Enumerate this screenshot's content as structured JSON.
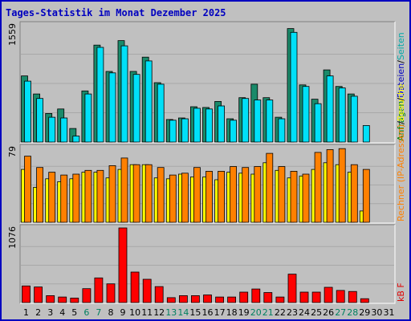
{
  "chart_data": {
    "title": "Tages-Statistik im Monat Dezember 2025",
    "type": "bar",
    "days": [
      "1",
      "2",
      "3",
      "4",
      "5",
      "6",
      "7",
      "8",
      "9",
      "10",
      "11",
      "12",
      "13",
      "14",
      "15",
      "16",
      "17",
      "18",
      "19",
      "20",
      "21",
      "22",
      "23",
      "24",
      "25",
      "26",
      "27",
      "28",
      "29",
      "30",
      "31"
    ],
    "weekend_days": [
      "6",
      "7",
      "13",
      "14",
      "20",
      "21",
      "27",
      "28"
    ],
    "panels": [
      {
        "id": "top",
        "max_label": "1559",
        "ylim": [
          0,
          1559
        ],
        "legend": [
          {
            "text": "Anfragen",
            "color": "#008000"
          },
          {
            "text": "/",
            "color": "#000000"
          },
          {
            "text": "Dateien",
            "color": "#0000c0"
          },
          {
            "text": "/",
            "color": "#000000"
          },
          {
            "text": "Seiten",
            "color": "#00aaaa"
          }
        ],
        "series": [
          {
            "name": "Anfragen",
            "color": "#1a8a6a",
            "values": [
              880,
              640,
              380,
              440,
              180,
              680,
              1290,
              940,
              1350,
              940,
              1130,
              790,
              300,
              320,
              470,
              460,
              540,
              310,
              590,
              770,
              590,
              330,
              1510,
              760,
              570,
              960,
              740,
              640,
              0,
              0,
              0
            ]
          },
          {
            "name": "Dateien",
            "color": "#00e0f8",
            "values": [
              810,
              580,
              330,
              320,
              80,
              640,
              1260,
              920,
              1280,
              900,
              1080,
              770,
              290,
              310,
              450,
              440,
              480,
              290,
              580,
              560,
              560,
              310,
              1460,
              740,
              510,
              880,
              720,
              610,
              220,
              0,
              0
            ]
          }
        ]
      },
      {
        "id": "middle",
        "max_label": "79",
        "ylim": [
          0,
          79
        ],
        "legend": [
          {
            "text": "Rechner (IP-Adressen)",
            "color": "#ff8000"
          },
          {
            "text": "/",
            "color": "#000000"
          },
          {
            "text": "Besuche",
            "color": "#ffff00"
          }
        ],
        "series": [
          {
            "name": "Besuche",
            "color": "#ffff00",
            "values": [
              56,
              37,
              46,
              43,
              46,
              53,
              53,
              47,
              56,
              61,
              61,
              47,
              46,
              51,
              48,
              48,
              45,
              53,
              52,
              51,
              63,
              55,
              47,
              49,
              56,
              63,
              61,
              53,
              12,
              0,
              0
            ]
          },
          {
            "name": "Rechner (IP-Adressen)",
            "color": "#ff8000",
            "values": [
              70,
              58,
              53,
              50,
              51,
              55,
              55,
              60,
              68,
              61,
              61,
              58,
              50,
              52,
              58,
              54,
              54,
              59,
              58,
              59,
              73,
              59,
              54,
              51,
              74,
              77,
              78,
              61,
              56,
              0,
              0
            ]
          }
        ]
      },
      {
        "id": "bottom",
        "max_label": "1076",
        "ylim": [
          0,
          1076
        ],
        "legend": [
          {
            "text": "kB F",
            "color": "#e00000"
          }
        ],
        "series": [
          {
            "name": "kB F",
            "color": "#ff0000",
            "values": [
              240,
              225,
              100,
              80,
              65,
              200,
              355,
              270,
              1076,
              440,
              335,
              230,
              70,
              100,
              100,
              110,
              80,
              80,
              150,
              195,
              145,
              80,
              410,
              150,
              150,
              220,
              175,
              160,
              55,
              0,
              0
            ]
          }
        ]
      }
    ]
  }
}
